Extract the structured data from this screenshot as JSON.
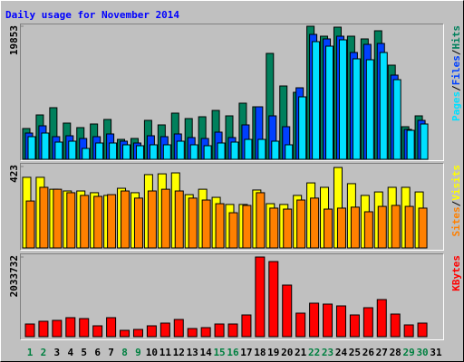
{
  "chart_data": [
    {
      "type": "bar",
      "title": "Daily usage for November 2014",
      "ylim": [
        0,
        19853
      ],
      "yticks": [
        19853
      ],
      "legend_separator": "/",
      "series": [
        {
          "name": "Hits",
          "color": "#00805c",
          "values": [
            4592,
            6617,
            7698,
            5402,
            4727,
            5267,
            5942,
            2971,
            3106,
            5807,
            5132,
            6888,
            6077,
            6347,
            7293,
            6482,
            8373,
            7833,
            15801,
            10939,
            9994,
            19853,
            18367,
            19717,
            18367,
            17962,
            19177,
            14045,
            4862,
            6482,
            0
          ]
        },
        {
          "name": "Files",
          "color": "#0040ff",
          "values": [
            3917,
            4997,
            3376,
            3511,
            3106,
            3376,
            3781,
            2701,
            2431,
            3511,
            3376,
            3781,
            3241,
            3106,
            4051,
            3241,
            5132,
            7833,
            6482,
            4862,
            10669,
            18637,
            17962,
            18367,
            15936,
            17151,
            17286,
            12560,
            4457,
            5807,
            0
          ]
        },
        {
          "name": "Pages",
          "color": "#00e0ff",
          "values": [
            3376,
            3917,
            2566,
            2701,
            1621,
            2431,
            2431,
            2161,
            2026,
            2161,
            2161,
            2701,
            2161,
            2026,
            2431,
            2566,
            2971,
            2971,
            2701,
            2161,
            9318,
            17556,
            16881,
            17826,
            14990,
            14855,
            15936,
            11884,
            4322,
            5267,
            0
          ]
        }
      ]
    },
    {
      "type": "bar",
      "ylim": [
        0,
        423
      ],
      "yticks": [
        423
      ],
      "legend_separator": "/",
      "series": [
        {
          "name": "Visits",
          "color": "#ffff00",
          "values": [
            367,
            367,
            305,
            296,
            296,
            287,
            273,
            310,
            287,
            381,
            385,
            390,
            277,
            305,
            263,
            226,
            226,
            301,
            230,
            226,
            273,
            338,
            315,
            418,
            334,
            273,
            291,
            315,
            315,
            291,
            0
          ]
        },
        {
          "name": "Sites",
          "color": "#ff8000",
          "values": [
            244,
            315,
            305,
            287,
            273,
            268,
            277,
            296,
            259,
            296,
            305,
            296,
            259,
            249,
            230,
            183,
            221,
            287,
            207,
            202,
            249,
            259,
            202,
            207,
            212,
            188,
            216,
            221,
            216,
            207,
            0
          ]
        }
      ]
    },
    {
      "type": "bar",
      "ylim": [
        0,
        2033732
      ],
      "yticks": [
        2033732
      ],
      "categories": [
        "1",
        "2",
        "3",
        "4",
        "5",
        "6",
        "7",
        "8",
        "9",
        "10",
        "11",
        "12",
        "13",
        "14",
        "15",
        "16",
        "17",
        "18",
        "19",
        "20",
        "21",
        "22",
        "23",
        "24",
        "25",
        "26",
        "27",
        "28",
        "29",
        "30",
        "31"
      ],
      "category_colors": [
        "#008040",
        "#008040",
        "#000000",
        "#000000",
        "#000000",
        "#000000",
        "#000000",
        "#008040",
        "#008040",
        "#000000",
        "#000000",
        "#000000",
        "#000000",
        "#000000",
        "#008040",
        "#008040",
        "#000000",
        "#000000",
        "#000000",
        "#000000",
        "#000000",
        "#008040",
        "#008040",
        "#000000",
        "#000000",
        "#000000",
        "#000000",
        "#000000",
        "#008040",
        "#008040",
        "#000000"
      ],
      "series": [
        {
          "name": "KBytes",
          "color": "#ff0000",
          "values": [
            323540,
            392870,
            415980,
            485310,
            462200,
            277320,
            485310,
            161770,
            184880,
            277320,
            346650,
            439090,
            207990,
            231100,
            323540,
            323540,
            554640,
            2033732,
            1918130,
            1317270,
            600860,
            855070,
            831960,
            785740,
            554640,
            739520,
            947510,
            577750,
            300430,
            346650,
            0
          ]
        }
      ]
    }
  ]
}
